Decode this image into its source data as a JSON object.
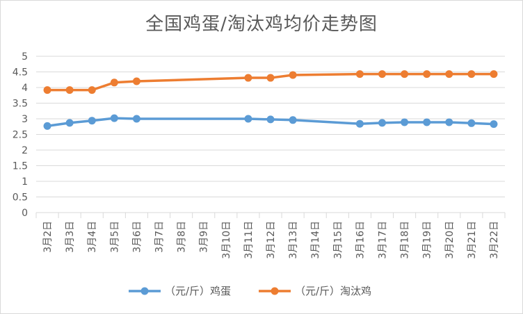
{
  "chart_data": {
    "type": "line",
    "title": "全国鸡蛋/淘汰鸡均价走势图",
    "xlabel": "",
    "ylabel": "",
    "ylim": [
      0,
      5
    ],
    "yticks": [
      "0",
      "0.5",
      "1",
      "1.5",
      "2",
      "2.5",
      "3",
      "3.5",
      "4",
      "4.5",
      "5"
    ],
    "grid": true,
    "legend_position": "bottom",
    "categories": [
      "3月2日",
      "3月3日",
      "3月4日",
      "3月5日",
      "3月6日",
      "3月7日",
      "3月8日",
      "3月9日",
      "3月10日",
      "3月11日",
      "3月12日",
      "3月13日",
      "3月14日",
      "3月15日",
      "3月16日",
      "3月17日",
      "3月18日",
      "3月19日",
      "3月20日",
      "3月21日",
      "3月22日"
    ],
    "series": [
      {
        "name": "（元/斤）鸡蛋",
        "color": "#5b9bd5",
        "values": [
          2.77,
          2.87,
          2.94,
          3.02,
          3.0,
          null,
          null,
          null,
          null,
          3.0,
          2.98,
          2.96,
          null,
          null,
          2.84,
          2.87,
          2.89,
          2.89,
          2.89,
          2.86,
          2.83
        ]
      },
      {
        "name": "（元/斤）淘汰鸡",
        "color": "#ed7d31",
        "values": [
          3.92,
          3.92,
          3.92,
          4.16,
          4.2,
          null,
          null,
          null,
          null,
          4.31,
          4.31,
          4.4,
          null,
          null,
          4.43,
          4.43,
          4.43,
          4.43,
          4.43,
          4.43,
          4.43
        ]
      }
    ]
  }
}
